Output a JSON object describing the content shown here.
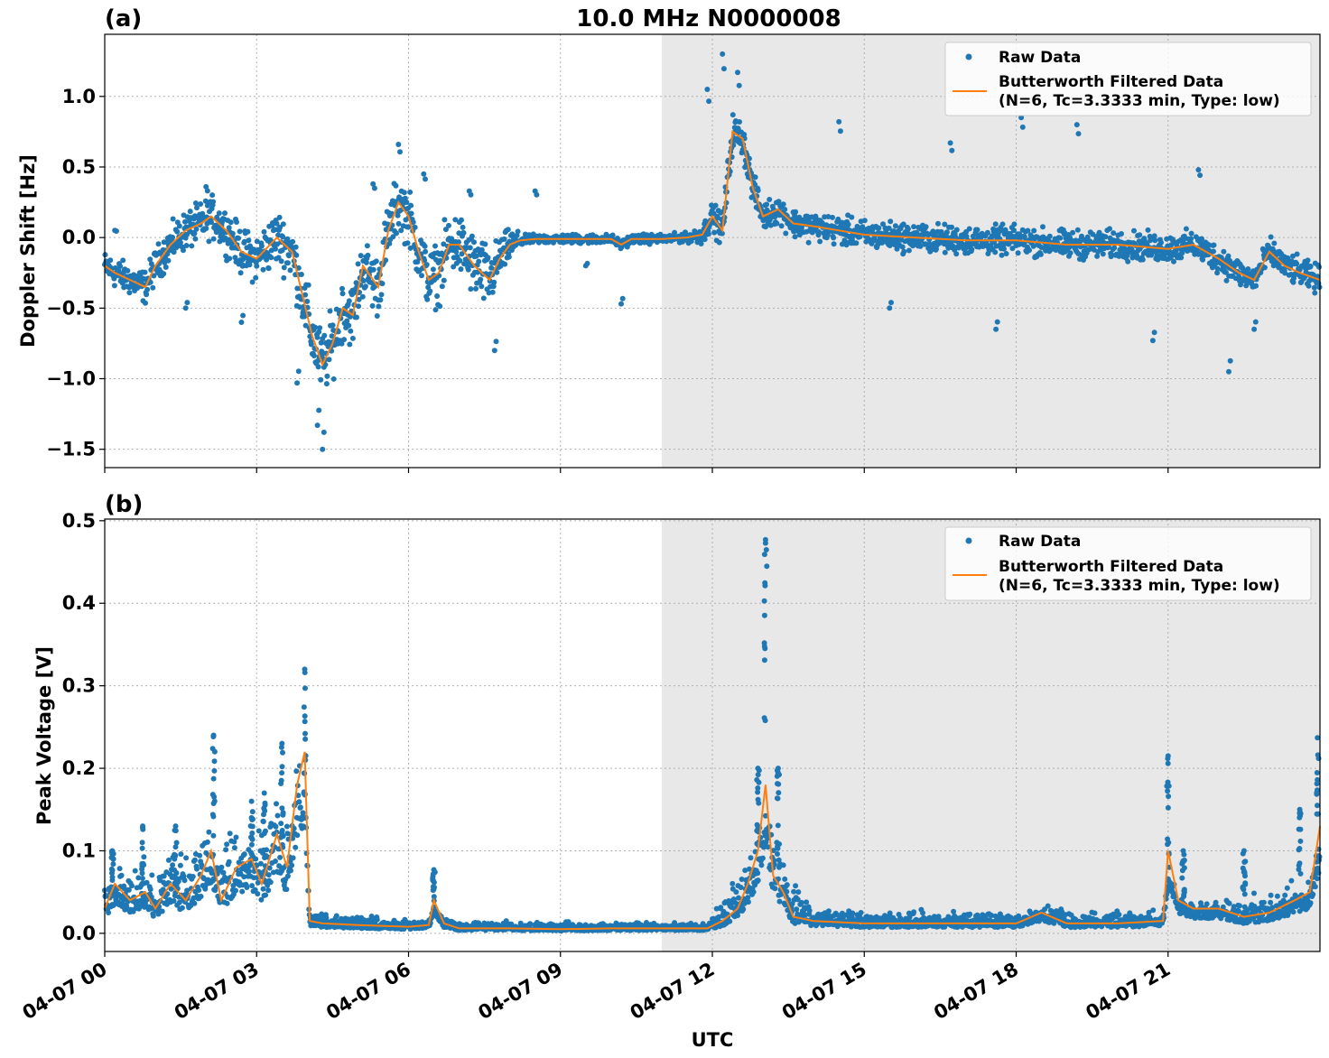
{
  "figure": {
    "title": "10.0 MHz N0000008",
    "xlabel": "UTC",
    "x_ticks": [
      "04-07 00",
      "04-07 03",
      "04-07 06",
      "04-07 09",
      "04-07 12",
      "04-07 15",
      "04-07 18",
      "04-07 21"
    ],
    "x_tick_hours": [
      0,
      3,
      6,
      9,
      12,
      15,
      18,
      21
    ],
    "x_range_hours": [
      0,
      24
    ],
    "shaded_region_hours": [
      11.0,
      24
    ],
    "colors": {
      "raw": "#1f77b4",
      "filtered": "#ff7f0e",
      "shade": "#e8e8e8",
      "grid": "#b0b0b0"
    }
  },
  "chart_data": [
    {
      "type": "scatter",
      "panel_label": "(a)",
      "ylabel": "Doppler Shift [Hz]",
      "y_ticks": [
        "1.0",
        "0.5",
        "0.0",
        "−0.5",
        "−1.0",
        "−1.5"
      ],
      "y_tick_values": [
        1.0,
        0.5,
        0.0,
        -0.5,
        -1.0,
        -1.5
      ],
      "ylim": [
        -1.63,
        1.44
      ],
      "grid": true,
      "legend_placement": "top-right",
      "legend": {
        "raw": "Raw Data",
        "filtered_line1": "Butterworth Filtered Data",
        "filtered_line2": "(N=6, Tc=3.3333 min, Type: low)"
      },
      "series": [
        {
          "name": "Raw Data",
          "kind": "scatter",
          "spread": [
            [
              0,
              0.15
            ],
            [
              3.0,
              0.25
            ],
            [
              4.2,
              0.35
            ],
            [
              6.0,
              0.3
            ],
            [
              7.5,
              0.35
            ],
            [
              8.3,
              0.05
            ],
            [
              11.5,
              0.05
            ],
            [
              12.3,
              0.2
            ],
            [
              13.0,
              0.15
            ],
            [
              24,
              0.15
            ]
          ],
          "outliers": [
            [
              0.2,
              0.05
            ],
            [
              1.6,
              -0.5
            ],
            [
              2.0,
              0.36
            ],
            [
              2.7,
              -0.6
            ],
            [
              3.8,
              -1.03
            ],
            [
              4.2,
              -1.33
            ],
            [
              4.3,
              -1.5
            ],
            [
              5.3,
              0.38
            ],
            [
              5.8,
              0.66
            ],
            [
              6.3,
              0.45
            ],
            [
              7.2,
              0.33
            ],
            [
              7.7,
              -0.8
            ],
            [
              8.5,
              0.33
            ],
            [
              9.5,
              -0.2
            ],
            [
              10.2,
              -0.47
            ],
            [
              11.9,
              1.05
            ],
            [
              12.2,
              1.3
            ],
            [
              12.5,
              1.17
            ],
            [
              14.5,
              0.82
            ],
            [
              15.5,
              -0.5
            ],
            [
              16.7,
              0.67
            ],
            [
              17.6,
              -0.65
            ],
            [
              18.1,
              0.85
            ],
            [
              19.2,
              0.8
            ],
            [
              20.7,
              -0.73
            ],
            [
              21.6,
              0.48
            ],
            [
              22.2,
              -0.95
            ],
            [
              22.7,
              -0.65
            ]
          ]
        },
        {
          "name": "Butterworth Filtered Data",
          "kind": "line",
          "x": [
            0,
            0.2,
            0.5,
            0.8,
            1.0,
            1.3,
            1.6,
            1.9,
            2.1,
            2.4,
            2.7,
            3.0,
            3.4,
            3.7,
            3.9,
            4.1,
            4.3,
            4.5,
            4.7,
            4.9,
            5.1,
            5.4,
            5.6,
            5.8,
            6.0,
            6.2,
            6.4,
            6.6,
            6.8,
            7.0,
            7.3,
            7.6,
            7.8,
            8.0,
            8.2,
            8.5,
            9.0,
            10.0,
            10.2,
            10.4,
            11.0,
            11.5,
            11.8,
            12.0,
            12.2,
            12.4,
            12.6,
            12.8,
            13.0,
            13.3,
            13.6,
            14.0,
            14.5,
            15.0,
            16.0,
            17.0,
            18.0,
            19.0,
            20.0,
            21.0,
            21.5,
            22.0,
            22.4,
            22.7,
            23.0,
            23.3,
            23.6,
            24.0
          ],
          "y": [
            -0.2,
            -0.25,
            -0.3,
            -0.35,
            -0.2,
            -0.05,
            0.05,
            0.1,
            0.15,
            0.05,
            -0.1,
            -0.15,
            0.0,
            -0.1,
            -0.4,
            -0.7,
            -0.9,
            -0.75,
            -0.5,
            -0.55,
            -0.2,
            -0.35,
            0.05,
            0.25,
            0.15,
            -0.1,
            -0.3,
            -0.25,
            -0.05,
            -0.05,
            -0.2,
            -0.3,
            -0.15,
            -0.05,
            -0.02,
            -0.01,
            -0.01,
            -0.01,
            -0.05,
            -0.01,
            -0.01,
            0.0,
            0.02,
            0.15,
            0.05,
            0.75,
            0.7,
            0.35,
            0.15,
            0.2,
            0.1,
            0.08,
            0.05,
            0.02,
            0.0,
            -0.02,
            -0.02,
            -0.05,
            -0.05,
            -0.08,
            -0.05,
            -0.15,
            -0.25,
            -0.3,
            -0.1,
            -0.2,
            -0.25,
            -0.3
          ]
        }
      ]
    },
    {
      "type": "scatter",
      "panel_label": "(b)",
      "ylabel": "Peak Voltage [V]",
      "y_ticks": [
        "0.5",
        "0.4",
        "0.3",
        "0.2",
        "0.1",
        "0.0"
      ],
      "y_tick_values": [
        0.5,
        0.4,
        0.3,
        0.2,
        0.1,
        0.0
      ],
      "ylim": [
        -0.022,
        0.502
      ],
      "grid": true,
      "legend_placement": "top-right",
      "legend": {
        "raw": "Raw Data",
        "filtered_line1": "Butterworth Filtered Data",
        "filtered_line2": "(N=6, Tc=3.3333 min, Type: low)"
      },
      "series": [
        {
          "name": "Raw Data",
          "kind": "scatter",
          "base": [
            [
              0,
              0.03
            ],
            [
              1.0,
              0.05
            ],
            [
              2.0,
              0.06
            ],
            [
              3.0,
              0.07
            ],
            [
              3.9,
              0.09
            ],
            [
              4.0,
              0.015
            ],
            [
              6.0,
              0.01
            ],
            [
              9.0,
              0.008
            ],
            [
              11.9,
              0.008
            ],
            [
              12.6,
              0.05
            ],
            [
              13.2,
              0.07
            ],
            [
              13.8,
              0.02
            ],
            [
              15.0,
              0.015
            ],
            [
              21.0,
              0.015
            ],
            [
              22.0,
              0.02
            ],
            [
              24,
              0.03
            ]
          ],
          "peaks": [
            [
              0.15,
              0.1
            ],
            [
              0.75,
              0.13
            ],
            [
              1.4,
              0.13
            ],
            [
              2.15,
              0.24
            ],
            [
              2.9,
              0.16
            ],
            [
              3.15,
              0.17
            ],
            [
              3.5,
              0.23
            ],
            [
              3.95,
              0.32
            ],
            [
              6.5,
              0.077
            ],
            [
              12.9,
              0.2
            ],
            [
              13.05,
              0.477
            ],
            [
              13.3,
              0.2
            ],
            [
              21.0,
              0.215
            ],
            [
              21.3,
              0.1
            ],
            [
              22.5,
              0.1
            ],
            [
              23.6,
              0.15
            ],
            [
              23.95,
              0.237
            ]
          ]
        },
        {
          "name": "Butterworth Filtered Data",
          "kind": "line",
          "x": [
            0,
            0.2,
            0.5,
            0.8,
            1.0,
            1.3,
            1.6,
            1.9,
            2.1,
            2.3,
            2.6,
            2.9,
            3.1,
            3.4,
            3.6,
            3.8,
            3.95,
            4.05,
            4.3,
            5.0,
            6.0,
            6.4,
            6.5,
            6.7,
            7.0,
            8.0,
            9.0,
            10.0,
            11.0,
            11.9,
            12.2,
            12.5,
            12.7,
            12.9,
            13.05,
            13.2,
            13.4,
            13.6,
            14.0,
            15.0,
            16.0,
            17.0,
            18.0,
            18.5,
            19.0,
            20.0,
            20.9,
            21.0,
            21.2,
            21.5,
            22.0,
            22.5,
            23.0,
            23.5,
            23.8,
            24.0
          ],
          "y": [
            0.03,
            0.06,
            0.04,
            0.05,
            0.03,
            0.06,
            0.04,
            0.07,
            0.1,
            0.04,
            0.08,
            0.09,
            0.06,
            0.12,
            0.08,
            0.18,
            0.22,
            0.015,
            0.012,
            0.01,
            0.008,
            0.01,
            0.04,
            0.012,
            0.006,
            0.006,
            0.005,
            0.006,
            0.006,
            0.006,
            0.015,
            0.03,
            0.06,
            0.1,
            0.18,
            0.07,
            0.05,
            0.02,
            0.015,
            0.012,
            0.012,
            0.012,
            0.012,
            0.025,
            0.012,
            0.012,
            0.015,
            0.1,
            0.04,
            0.03,
            0.03,
            0.02,
            0.025,
            0.04,
            0.05,
            0.13
          ]
        }
      ]
    }
  ]
}
